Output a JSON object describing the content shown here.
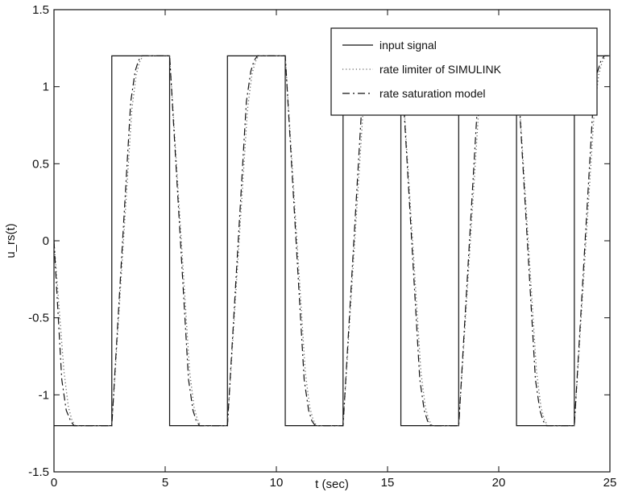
{
  "chart_data": {
    "type": "line",
    "title": "",
    "xlabel": "t (sec)",
    "ylabel": "u_rs(t)",
    "xlim": [
      0,
      25
    ],
    "ylim": [
      -1.5,
      1.5
    ],
    "xticks": [
      0,
      5,
      10,
      15,
      20,
      25
    ],
    "xtick_labels": [
      "0",
      "5",
      "10",
      "15",
      "20",
      "25"
    ],
    "yticks": [
      -1.5,
      -1,
      -0.5,
      0,
      0.5,
      1,
      1.5
    ],
    "ytick_labels": [
      "-1.5",
      "-1",
      "-0.5",
      "0",
      "0.5",
      "1",
      "1.5"
    ],
    "grid": false,
    "legend_position": "top-right",
    "series": [
      {
        "name": "input signal",
        "style": "solid",
        "color": "#111111",
        "x": [
          0,
          2.6,
          2.6,
          5.2,
          5.2,
          7.8,
          7.8,
          10.4,
          10.4,
          13.0,
          13.0,
          15.6,
          15.6,
          18.2,
          18.2,
          20.8,
          20.8,
          23.4,
          23.4,
          25
        ],
        "y": [
          -1.2,
          -1.2,
          1.2,
          1.2,
          -1.2,
          -1.2,
          1.2,
          1.2,
          -1.2,
          -1.2,
          1.2,
          1.2,
          -1.2,
          -1.2,
          1.2,
          1.2,
          -1.2,
          -1.2,
          1.2,
          1.2
        ]
      },
      {
        "name": "rate limiter of SIMULINK",
        "style": "dotted",
        "color": "#666666",
        "x": [
          0,
          0.45,
          0.65,
          0.8,
          0.95,
          2.6,
          3.5,
          3.7,
          3.85,
          4.0,
          5.2,
          6.1,
          6.3,
          6.45,
          6.6,
          7.8,
          8.7,
          8.9,
          9.05,
          9.2,
          10.4,
          11.3,
          11.5,
          11.65,
          11.8,
          13.0,
          13.9,
          14.1,
          14.25,
          14.4,
          15.6,
          16.5,
          16.7,
          16.85,
          17.0,
          18.2,
          19.1,
          19.3,
          19.45,
          19.6,
          20.8,
          21.7,
          21.9,
          22.05,
          22.2,
          23.4,
          24.3,
          24.5,
          24.65,
          24.8,
          25
        ],
        "y": [
          0,
          -0.85,
          -1.08,
          -1.16,
          -1.2,
          -1.2,
          0.85,
          1.08,
          1.16,
          1.2,
          1.2,
          -0.85,
          -1.08,
          -1.16,
          -1.2,
          -1.2,
          0.85,
          1.08,
          1.16,
          1.2,
          1.2,
          -0.85,
          -1.08,
          -1.16,
          -1.2,
          -1.2,
          0.85,
          1.08,
          1.16,
          1.2,
          1.2,
          -0.85,
          -1.08,
          -1.16,
          -1.2,
          -1.2,
          0.85,
          1.08,
          1.16,
          1.2,
          1.2,
          -0.85,
          -1.08,
          -1.16,
          -1.2,
          -1.2,
          0.85,
          1.08,
          1.16,
          1.2,
          1.2
        ]
      },
      {
        "name": "rate saturation model",
        "style": "dashdot",
        "color": "#111111",
        "x": [
          0,
          0.35,
          0.55,
          0.75,
          0.9,
          2.6,
          3.45,
          3.65,
          3.8,
          3.95,
          5.2,
          6.05,
          6.25,
          6.4,
          6.55,
          7.8,
          8.65,
          8.85,
          9.0,
          9.15,
          10.4,
          11.25,
          11.45,
          11.6,
          11.75,
          13.0,
          13.85,
          14.05,
          14.2,
          14.35,
          15.6,
          16.45,
          16.65,
          16.8,
          16.95,
          18.2,
          19.05,
          19.25,
          19.4,
          19.55,
          20.8,
          21.65,
          21.85,
          22.0,
          22.15,
          23.4,
          24.25,
          24.45,
          24.6,
          24.75,
          25
        ],
        "y": [
          0,
          -0.9,
          -1.1,
          -1.17,
          -1.2,
          -1.2,
          0.9,
          1.1,
          1.17,
          1.2,
          1.2,
          -0.9,
          -1.1,
          -1.17,
          -1.2,
          -1.2,
          0.9,
          1.1,
          1.17,
          1.2,
          1.2,
          -0.9,
          -1.1,
          -1.17,
          -1.2,
          -1.2,
          0.9,
          1.1,
          1.17,
          1.2,
          1.2,
          -0.9,
          -1.1,
          -1.17,
          -1.2,
          -1.2,
          0.9,
          1.1,
          1.17,
          1.2,
          1.2,
          -0.9,
          -1.1,
          -1.17,
          -1.2,
          -1.2,
          0.9,
          1.1,
          1.17,
          1.2,
          1.2
        ]
      }
    ]
  }
}
